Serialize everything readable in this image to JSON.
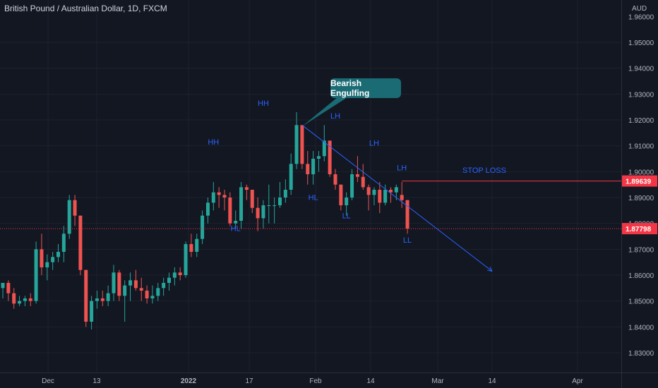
{
  "header": {
    "symbol": "British Pound / Australian Dollar, 1D, FXCM",
    "currency": "AUD"
  },
  "colors": {
    "background": "#131722",
    "grid": "#1e222d",
    "bull": "#26a69a",
    "bear": "#ef5350",
    "annotation_text": "#2962ff",
    "stop_line": "#f23645",
    "price_line": "#f23645",
    "trend_arrow": "#2962ff",
    "callout_bg": "#1a6b74"
  },
  "price_axis": {
    "ticks": [
      "1.95000",
      "1.94000",
      "1.93000",
      "1.92000",
      "1.91000",
      "1.90000",
      "1.89000",
      "1.88000",
      "1.87000",
      "1.86000",
      "1.85000",
      "1.84000",
      "1.83000"
    ],
    "top_partial": "1.96000",
    "stop_badge": "1.89639",
    "current_badge": "1.87798"
  },
  "time_axis": {
    "labels": [
      "Dec",
      "13",
      "2022",
      "17",
      "Feb",
      "14",
      "Mar",
      "14",
      "Apr"
    ]
  },
  "annotations": {
    "callout": "Bearish Engulfing",
    "stop_loss": "STOP LOSS",
    "swing_labels": [
      {
        "text": "HH",
        "candle": 47
      },
      {
        "text": "HH",
        "candle": 38
      },
      {
        "text": "HL",
        "candle": 42
      },
      {
        "text": "HL",
        "candle": 56
      },
      {
        "text": "LH",
        "candle": 60
      },
      {
        "text": "LH",
        "candle": 67
      },
      {
        "text": "LH",
        "candle": 72
      },
      {
        "text": "LL",
        "candle": 62
      },
      {
        "text": "LL",
        "candle": 73
      }
    ]
  },
  "chart_data": {
    "type": "candlestick",
    "y_range": [
      1.824,
      1.965
    ],
    "stop_loss_level": 1.89639,
    "current_price": 1.87798,
    "candles": [
      [
        1.855,
        1.857,
        1.851,
        1.857
      ],
      [
        1.857,
        1.858,
        1.85,
        1.853
      ],
      [
        1.853,
        1.855,
        1.847,
        1.849
      ],
      [
        1.849,
        1.852,
        1.848,
        1.85
      ],
      [
        1.85,
        1.852,
        1.848,
        1.851
      ],
      [
        1.851,
        1.853,
        1.848,
        1.85
      ],
      [
        1.85,
        1.873,
        1.849,
        1.87
      ],
      [
        1.87,
        1.876,
        1.86,
        1.863
      ],
      [
        1.863,
        1.868,
        1.858,
        1.865
      ],
      [
        1.865,
        1.869,
        1.862,
        1.867
      ],
      [
        1.867,
        1.872,
        1.865,
        1.869
      ],
      [
        1.869,
        1.879,
        1.865,
        1.876
      ],
      [
        1.876,
        1.891,
        1.874,
        1.889
      ],
      [
        1.889,
        1.891,
        1.879,
        1.883
      ],
      [
        1.883,
        1.883,
        1.86,
        1.862
      ],
      [
        1.862,
        1.862,
        1.84,
        1.842
      ],
      [
        1.842,
        1.852,
        1.839,
        1.85
      ],
      [
        1.85,
        1.854,
        1.847,
        1.851
      ],
      [
        1.851,
        1.854,
        1.848,
        1.85
      ],
      [
        1.85,
        1.856,
        1.848,
        1.853
      ],
      [
        1.853,
        1.864,
        1.85,
        1.861
      ],
      [
        1.861,
        1.862,
        1.85,
        1.852
      ],
      [
        1.852,
        1.858,
        1.842,
        1.856
      ],
      [
        1.856,
        1.861,
        1.85,
        1.858
      ],
      [
        1.858,
        1.862,
        1.854,
        1.855
      ],
      [
        1.855,
        1.859,
        1.85,
        1.854
      ],
      [
        1.854,
        1.856,
        1.849,
        1.851
      ],
      [
        1.851,
        1.856,
        1.849,
        1.852
      ],
      [
        1.852,
        1.857,
        1.85,
        1.855
      ],
      [
        1.855,
        1.859,
        1.852,
        1.857
      ],
      [
        1.857,
        1.861,
        1.854,
        1.859
      ],
      [
        1.859,
        1.863,
        1.856,
        1.861
      ],
      [
        1.861,
        1.863,
        1.858,
        1.86
      ],
      [
        1.86,
        1.873,
        1.859,
        1.872
      ],
      [
        1.872,
        1.876,
        1.867,
        1.869
      ],
      [
        1.869,
        1.876,
        1.867,
        1.874
      ],
      [
        1.874,
        1.885,
        1.872,
        1.883
      ],
      [
        1.883,
        1.89,
        1.88,
        1.888
      ],
      [
        1.888,
        1.896,
        1.885,
        1.892
      ],
      [
        1.892,
        1.894,
        1.886,
        1.891
      ],
      [
        1.891,
        1.893,
        1.885,
        1.89
      ],
      [
        1.89,
        1.892,
        1.879,
        1.88
      ],
      [
        1.88,
        1.885,
        1.878,
        1.881
      ],
      [
        1.881,
        1.896,
        1.878,
        1.894
      ],
      [
        1.894,
        1.895,
        1.889,
        1.893
      ],
      [
        1.893,
        1.893,
        1.884,
        1.886
      ],
      [
        1.886,
        1.89,
        1.877,
        1.882
      ],
      [
        1.882,
        1.889,
        1.878,
        1.887
      ],
      [
        1.887,
        1.895,
        1.88,
        1.887
      ],
      [
        1.887,
        1.89,
        1.88,
        1.887
      ],
      [
        1.887,
        1.896,
        1.886,
        1.89
      ],
      [
        1.89,
        1.897,
        1.888,
        1.893
      ],
      [
        1.893,
        1.907,
        1.891,
        1.903
      ],
      [
        1.903,
        1.923,
        1.901,
        1.918
      ],
      [
        1.918,
        1.918,
        1.901,
        1.903
      ],
      [
        1.903,
        1.908,
        1.895,
        1.899
      ],
      [
        1.899,
        1.908,
        1.895,
        1.905
      ],
      [
        1.905,
        1.908,
        1.9,
        1.906
      ],
      [
        1.906,
        1.918,
        1.904,
        1.912
      ],
      [
        1.912,
        1.912,
        1.898,
        1.899
      ],
      [
        1.899,
        1.901,
        1.893,
        1.895
      ],
      [
        1.895,
        1.895,
        1.885,
        1.887
      ],
      [
        1.887,
        1.892,
        1.883,
        1.89
      ],
      [
        1.89,
        1.901,
        1.889,
        1.899
      ],
      [
        1.899,
        1.906,
        1.896,
        1.898
      ],
      [
        1.898,
        1.903,
        1.893,
        1.894
      ],
      [
        1.894,
        1.895,
        1.885,
        1.891
      ],
      [
        1.891,
        1.894,
        1.887,
        1.893
      ],
      [
        1.893,
        1.896,
        1.884,
        1.888
      ],
      [
        1.888,
        1.895,
        1.887,
        1.893
      ],
      [
        1.893,
        1.894,
        1.888,
        1.892
      ],
      [
        1.892,
        1.895,
        1.889,
        1.894
      ],
      [
        1.891,
        1.896,
        1.886,
        1.889
      ],
      [
        1.889,
        1.889,
        1.876,
        1.878
      ]
    ]
  }
}
